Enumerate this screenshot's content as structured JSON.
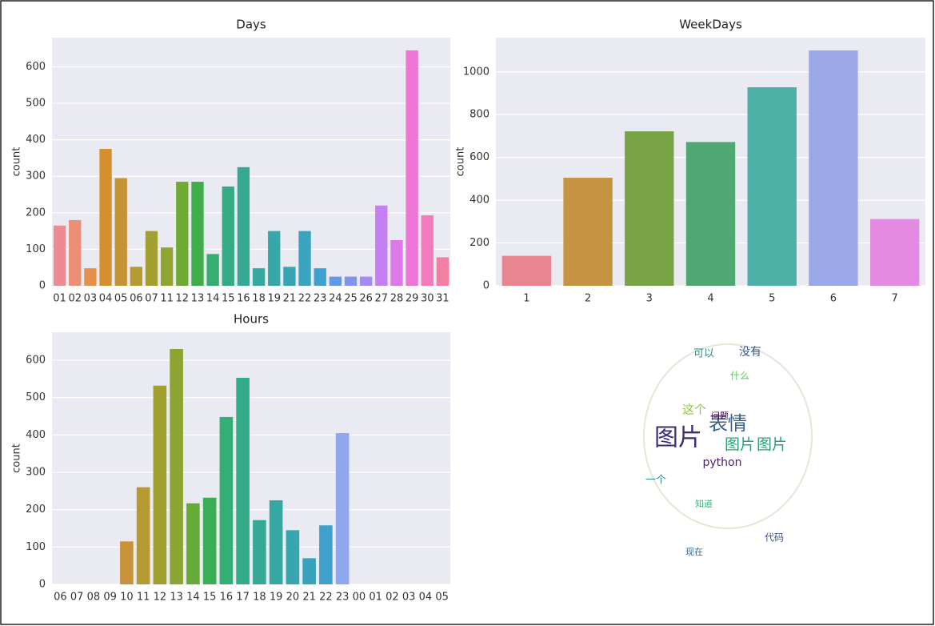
{
  "chart_data": [
    {
      "type": "bar",
      "title": "Days",
      "ylabel": "count",
      "categories": [
        "01",
        "02",
        "03",
        "04",
        "05",
        "06",
        "07",
        "11",
        "12",
        "13",
        "14",
        "15",
        "16",
        "18",
        "19",
        "21",
        "22",
        "23",
        "24",
        "25",
        "26",
        "27",
        "28",
        "29",
        "30",
        "31"
      ],
      "values": [
        165,
        180,
        48,
        375,
        295,
        52,
        150,
        105,
        285,
        285,
        87,
        272,
        325,
        48,
        150,
        52,
        150,
        48,
        25,
        25,
        25,
        220,
        125,
        645,
        193,
        78
      ],
      "colors": [
        "#ee8a92",
        "#ec8f76",
        "#e6904e",
        "#d58f2f",
        "#c59236",
        "#b49a31",
        "#a39f31",
        "#8fa431",
        "#6fab34",
        "#3fae4a",
        "#36ad72",
        "#34ab85",
        "#35a992",
        "#36a89e",
        "#37a7a8",
        "#38a5b2",
        "#3aa3bd",
        "#3ea0cc",
        "#6399e2",
        "#8492ee",
        "#a58af2",
        "#c57ff2",
        "#dc78e8",
        "#ec75d6",
        "#f37bbb",
        "#f280a2"
      ],
      "ylim": [
        0,
        680
      ],
      "yticks": [
        0,
        100,
        200,
        300,
        400,
        500,
        600
      ],
      "grid": true
    },
    {
      "type": "bar",
      "title": "WeekDays",
      "ylabel": "count",
      "categories": [
        "1",
        "2",
        "3",
        "4",
        "5",
        "6",
        "7"
      ],
      "values": [
        140,
        505,
        722,
        672,
        928,
        1100,
        312
      ],
      "colors": [
        "#e8868f",
        "#c49442",
        "#79a446",
        "#4fa772",
        "#4fb0a8",
        "#9aa8e8",
        "#e48ae2"
      ],
      "ylim": [
        0,
        1160
      ],
      "yticks": [
        0,
        200,
        400,
        600,
        800,
        1000
      ],
      "grid": true
    },
    {
      "type": "bar",
      "title": "Hours",
      "ylabel": "count",
      "categories": [
        "06",
        "07",
        "08",
        "09",
        "10",
        "11",
        "12",
        "13",
        "14",
        "15",
        "16",
        "17",
        "18",
        "19",
        "20",
        "21",
        "22",
        "23",
        "00",
        "01",
        "02",
        "03",
        "04",
        "05"
      ],
      "values": [
        0,
        0,
        0,
        0,
        115,
        260,
        532,
        630,
        217,
        232,
        448,
        553,
        172,
        225,
        145,
        70,
        158,
        405,
        0,
        0,
        0,
        0,
        0,
        0
      ],
      "colors": [
        "#ee8a92",
        "#ec8d78",
        "#e68f55",
        "#d88f33",
        "#c8923a",
        "#b49a31",
        "#a29f31",
        "#8ca532",
        "#66ab37",
        "#3aae55",
        "#35ad76",
        "#34ab88",
        "#35a996",
        "#36a8a2",
        "#38a6ae",
        "#3aa3bc",
        "#3fa0cb",
        "#8fa8ec",
        "#a58af2",
        "#c57ff2",
        "#dc78e8",
        "#ec75d6",
        "#f37bbb",
        "#f280a2"
      ],
      "ylim": [
        0,
        675
      ],
      "yticks": [
        0,
        100,
        200,
        300,
        400,
        500,
        600
      ],
      "grid": true
    }
  ],
  "wordcloud": {
    "words": [
      "图片",
      "表情",
      "图片",
      "图片",
      "python",
      "这个",
      "没有",
      "可以",
      "什么",
      "一个",
      "代码",
      "问题",
      "现在",
      "知道"
    ]
  }
}
